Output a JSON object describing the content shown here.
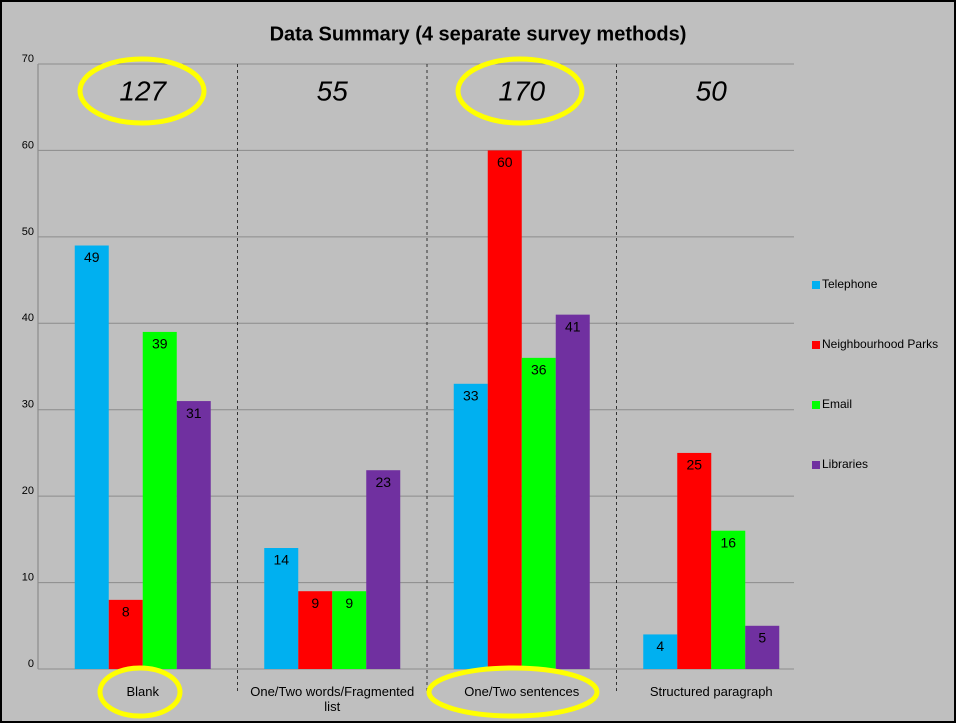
{
  "chart_data": {
    "type": "bar",
    "title": "Data Summary (4 separate survey methods)",
    "categories": [
      "Blank",
      "One/Two words/Fragmented list",
      "One/Two sentences",
      "Structured paragraph"
    ],
    "annotations": [
      127,
      55,
      170,
      50
    ],
    "series": [
      {
        "name": "Telephone",
        "color": "#00b0f0",
        "values": [
          49,
          14,
          33,
          4
        ]
      },
      {
        "name": "Neighbourhood Parks",
        "color": "#ff0000",
        "values": [
          8,
          9,
          60,
          25
        ]
      },
      {
        "name": "Email",
        "color": "#00ff00",
        "values": [
          39,
          9,
          36,
          16
        ]
      },
      {
        "name": "Libraries",
        "color": "#7030a0",
        "values": [
          31,
          23,
          41,
          5
        ]
      }
    ],
    "ylim": [
      0,
      70
    ],
    "yticks": [
      0,
      10,
      20,
      30,
      40,
      50,
      60,
      70
    ],
    "grid": true,
    "legend": "right"
  }
}
